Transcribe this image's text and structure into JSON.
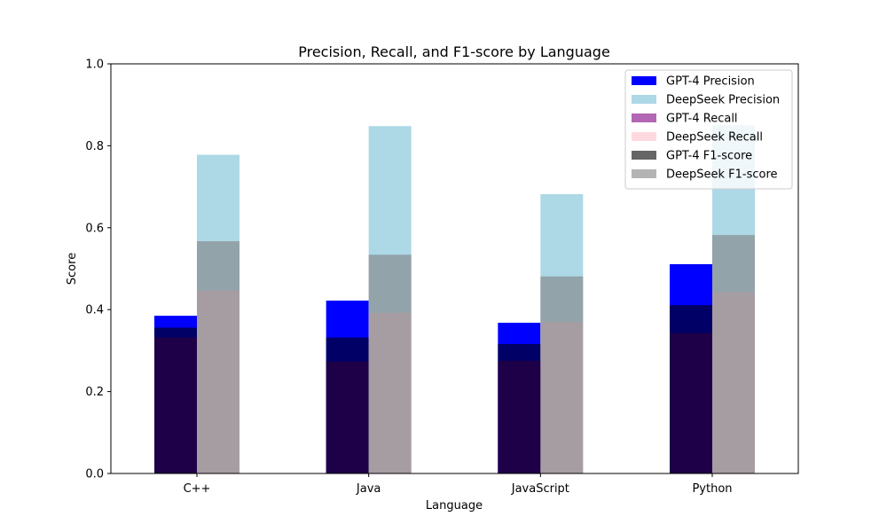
{
  "chart_data": {
    "type": "bar",
    "title": "Precision, Recall, and F1-score by Language",
    "xlabel": "Language",
    "ylabel": "Score",
    "ylim": [
      0,
      1
    ],
    "yticks": [
      "0.0",
      "0.2",
      "0.4",
      "0.6",
      "0.8",
      "1.0"
    ],
    "categories": [
      "C++",
      "Java",
      "JavaScript",
      "Python"
    ],
    "grid": false,
    "legend_position": "top-right",
    "series": [
      {
        "name": "GPT-4 Precision",
        "group": "GPT-4",
        "color": "#0000ff",
        "alpha": 1.0,
        "values": [
          0.385,
          0.422,
          0.368,
          0.511
        ]
      },
      {
        "name": "DeepSeek Precision",
        "group": "DeepSeek",
        "color": "#add8e6",
        "alpha": 1.0,
        "values": [
          0.778,
          0.848,
          0.682,
          0.85
        ]
      },
      {
        "name": "GPT-4 Recall",
        "group": "GPT-4",
        "color": "#800080",
        "alpha": 0.6,
        "values": [
          0.332,
          0.273,
          0.275,
          0.343
        ]
      },
      {
        "name": "DeepSeek Recall",
        "group": "DeepSeek",
        "color": "#ffc0cb",
        "alpha": 0.6,
        "values": [
          0.447,
          0.392,
          0.37,
          0.443
        ]
      },
      {
        "name": "GPT-4 F1-score",
        "group": "GPT-4",
        "color": "#000000",
        "alpha": 0.6,
        "values": [
          0.356,
          0.332,
          0.316,
          0.411
        ]
      },
      {
        "name": "DeepSeek F1-score",
        "group": "DeepSeek",
        "color": "#808080",
        "alpha": 0.6,
        "values": [
          0.567,
          0.534,
          0.481,
          0.582
        ]
      }
    ]
  }
}
